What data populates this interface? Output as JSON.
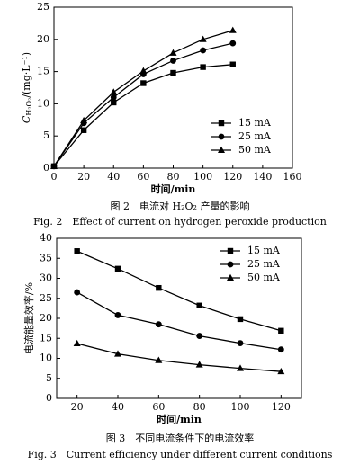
{
  "chart_data": [
    {
      "type": "line",
      "ylabel": [
        "C",
        "H₂O₂",
        "/(mg·L⁻¹)"
      ],
      "xlabel": "时间/min",
      "caption": "图 2　电流对 H₂O₂ 产量的影响",
      "caption_en": "Fig. 2　Effect of current on hydrogen peroxide production",
      "x": [
        0,
        20,
        40,
        60,
        80,
        100,
        120
      ],
      "xlim": [
        0,
        160
      ],
      "xticks": [
        0,
        20,
        40,
        60,
        80,
        100,
        120,
        140,
        160
      ],
      "ylim": [
        0,
        25
      ],
      "yticks": [
        0,
        5,
        10,
        15,
        20,
        25
      ],
      "legend": "lower right",
      "series": [
        {
          "name": "15 mA",
          "color": "#000000",
          "marker": "square",
          "values": [
            0.3,
            5.9,
            10.2,
            13.2,
            14.8,
            15.7,
            16.1
          ]
        },
        {
          "name": "25 mA",
          "color": "#000000",
          "marker": "circle",
          "values": [
            0.3,
            7.0,
            11.0,
            14.6,
            16.7,
            18.3,
            19.4
          ]
        },
        {
          "name": "50 mA",
          "color": "#000000",
          "marker": "triangle",
          "values": [
            0.3,
            7.4,
            11.8,
            15.1,
            17.9,
            20.0,
            21.4
          ]
        }
      ]
    },
    {
      "type": "line",
      "ylabel": "电流能量效率/%",
      "xlabel": "时间/min",
      "caption": "图 3　不同电流条件下的电流效率",
      "caption_en": "Fig. 3　Current efficiency under different current conditions",
      "x": [
        20,
        40,
        60,
        80,
        100,
        120
      ],
      "xlim": [
        10,
        130
      ],
      "xticks": [
        20,
        40,
        60,
        80,
        100,
        120
      ],
      "ylim": [
        0,
        40
      ],
      "yticks": [
        0,
        5,
        10,
        15,
        20,
        25,
        30,
        35,
        40
      ],
      "legend": "upper right",
      "series": [
        {
          "name": "15 mA",
          "color": "#000000",
          "marker": "square",
          "values": [
            36.8,
            32.4,
            27.6,
            23.2,
            19.8,
            16.9
          ]
        },
        {
          "name": "25 mA",
          "color": "#000000",
          "marker": "circle",
          "values": [
            26.5,
            20.8,
            18.5,
            15.6,
            13.8,
            12.2
          ]
        },
        {
          "name": "50 mA",
          "color": "#000000",
          "marker": "triangle",
          "values": [
            13.7,
            11.1,
            9.5,
            8.4,
            7.5,
            6.7
          ]
        }
      ]
    }
  ]
}
